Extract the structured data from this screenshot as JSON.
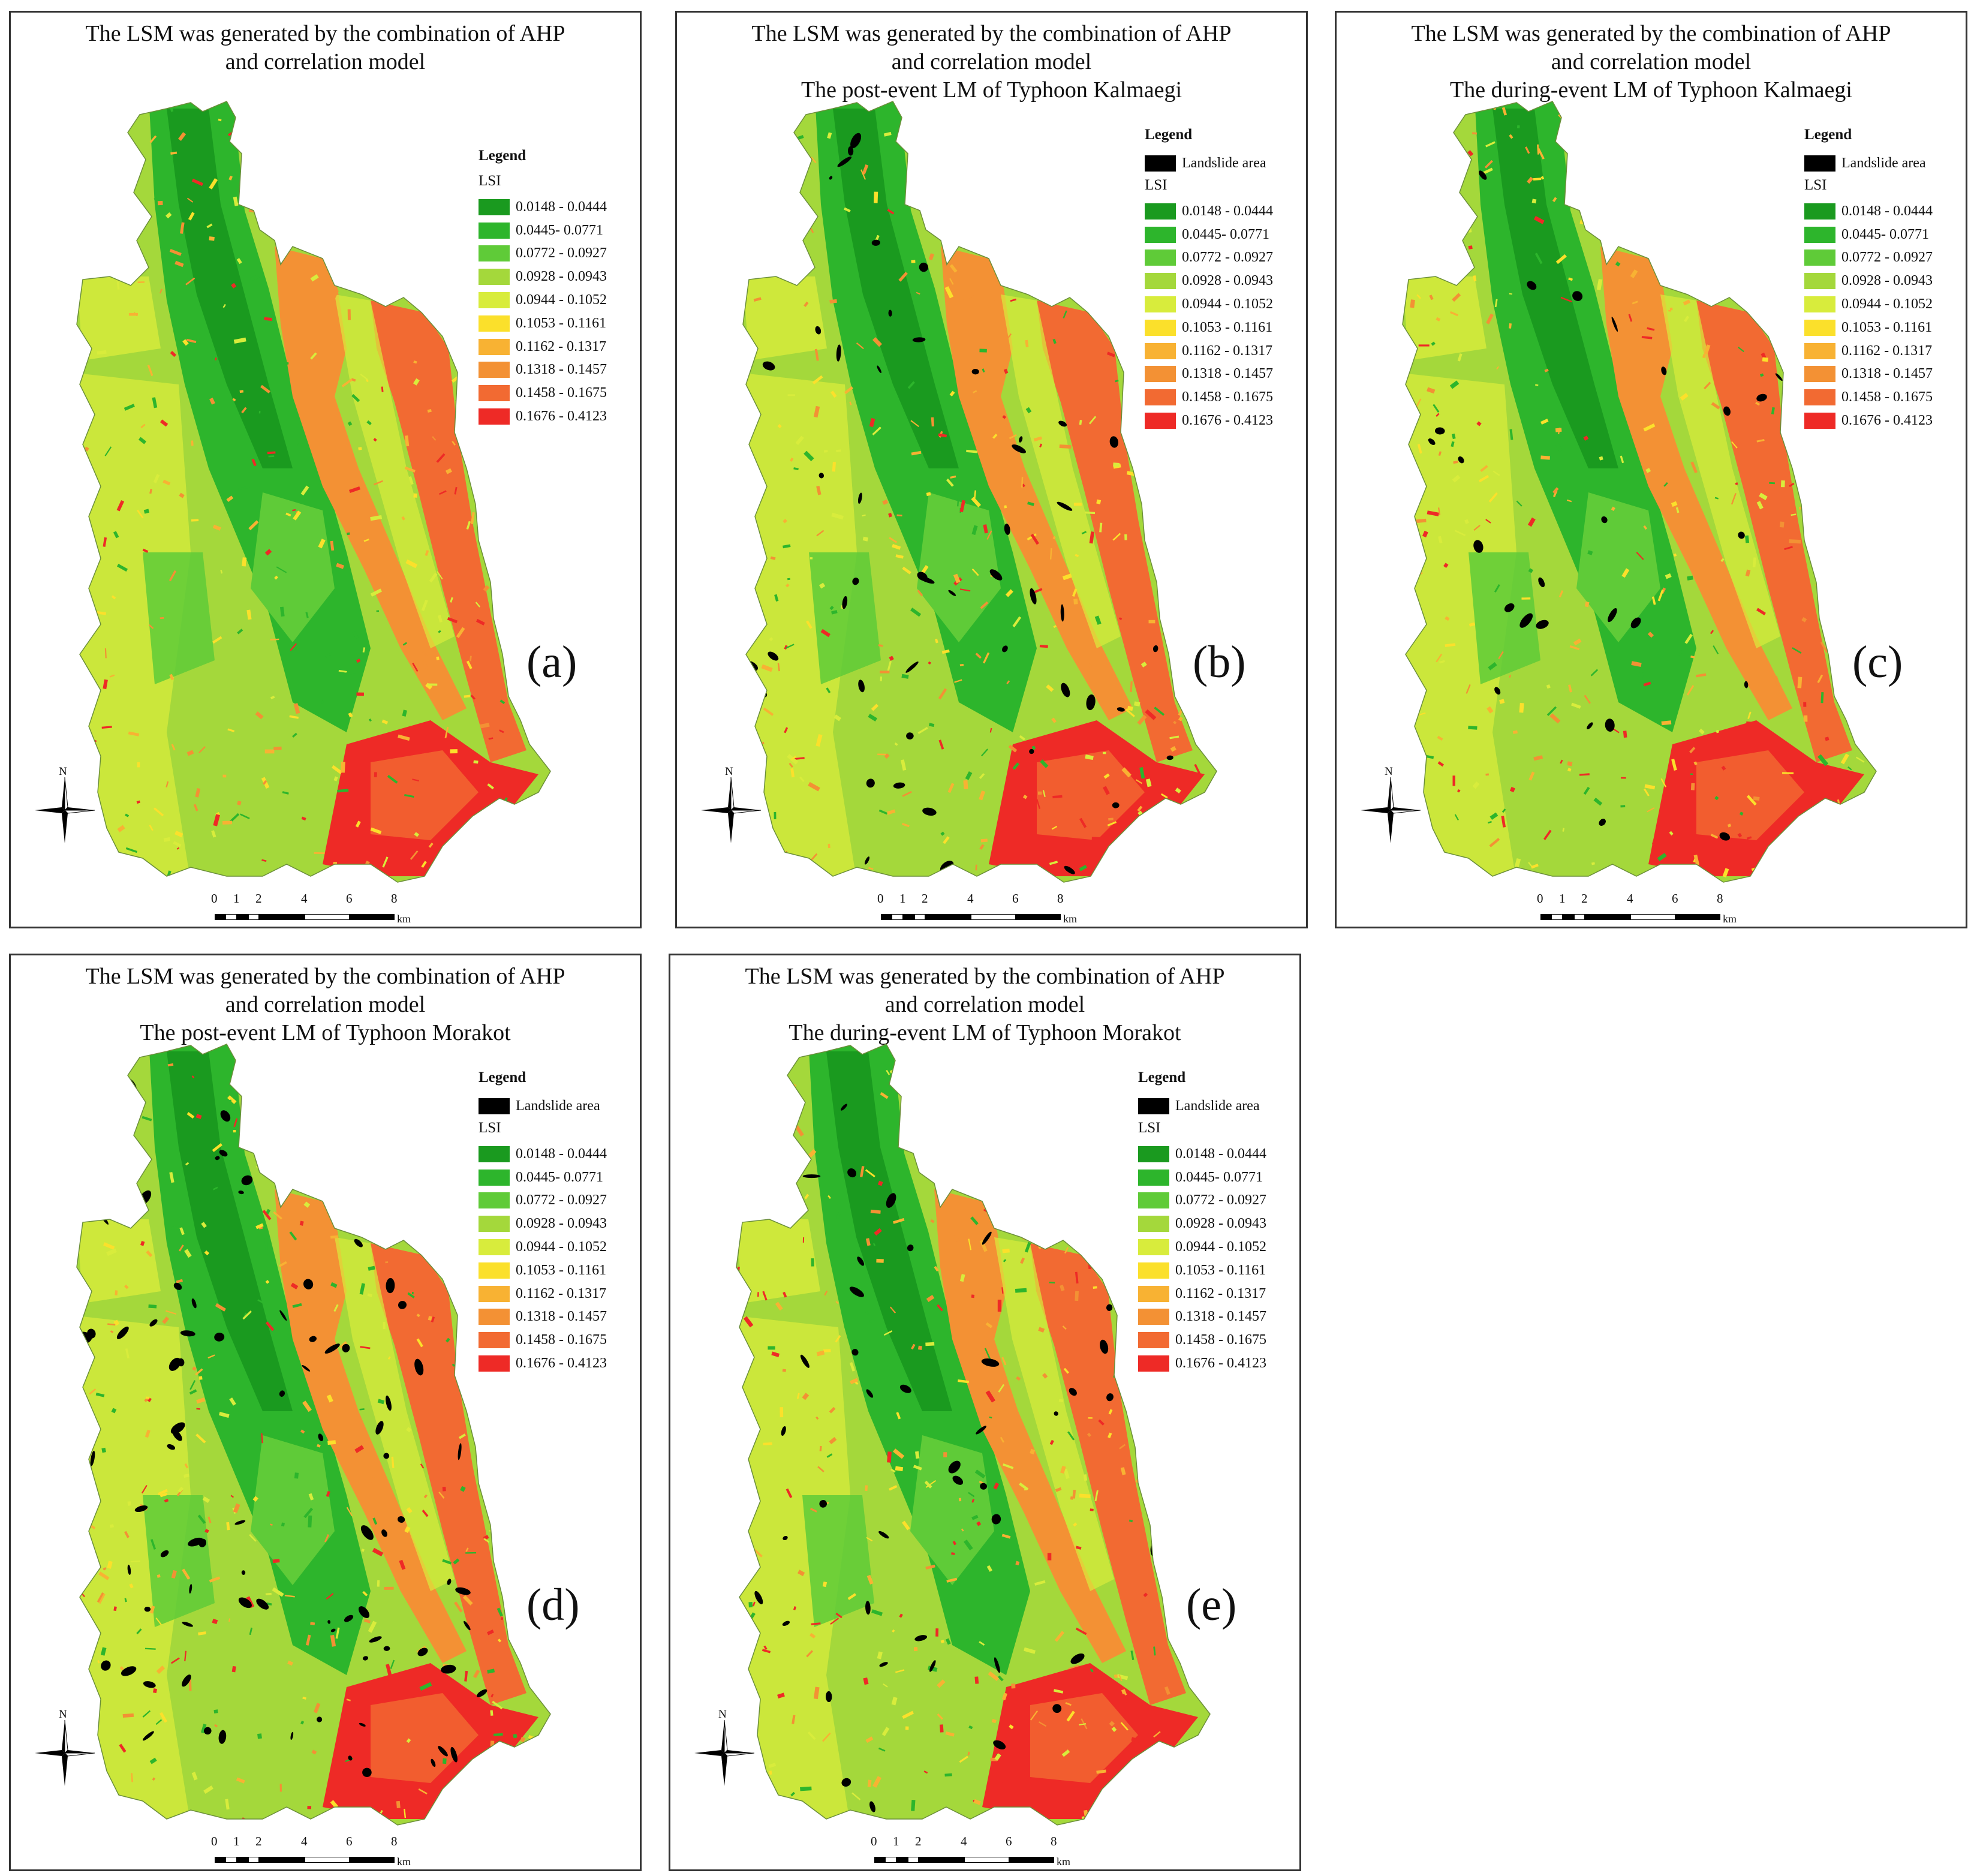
{
  "panels": [
    {
      "id": "a",
      "label": "(a)",
      "titles": [
        "The LSM was generated by the combination of AHP",
        "and correlation model"
      ],
      "show_landslide": false,
      "landslide_level": 0
    },
    {
      "id": "b",
      "label": "(b)",
      "titles": [
        "The LSM was generated by the combination of AHP",
        "and correlation model",
        "The post-event LM of Typhoon Kalmaegi"
      ],
      "show_landslide": true,
      "landslide_level": 1
    },
    {
      "id": "c",
      "label": "(c)",
      "titles": [
        "The LSM was generated by the combination of AHP",
        "and correlation model",
        "The during-event LM of Typhoon Kalmaegi"
      ],
      "show_landslide": true,
      "landslide_level": 0.5
    },
    {
      "id": "d",
      "label": "(d)",
      "titles": [
        "The LSM was generated by the combination of AHP",
        "and correlation model",
        "The post-event LM of Typhoon Morakot"
      ],
      "show_landslide": true,
      "landslide_level": 1.4
    },
    {
      "id": "e",
      "label": "(e)",
      "titles": [
        "The LSM was generated by the combination of AHP",
        "and correlation model",
        "The during-event LM of Typhoon Morakot"
      ],
      "show_landslide": true,
      "landslide_level": 0.8
    }
  ],
  "legend": {
    "title": "Legend",
    "landslide_label": "Landslide area",
    "landslide_color": "#000000",
    "lsi_label": "LSI",
    "classes": [
      {
        "label": "0.0148 - 0.0444",
        "color": "#1a9a1f"
      },
      {
        "label": "0.0445- 0.0771",
        "color": "#2db52c"
      },
      {
        "label": "0.0772 - 0.0927",
        "color": "#5fcb38"
      },
      {
        "label": "0.0928 - 0.0943",
        "color": "#a4d83b"
      },
      {
        "label": "0.0944 - 0.1052",
        "color": "#d8ec3c"
      },
      {
        "label": "0.1053 - 0.1161",
        "color": "#fbe02b"
      },
      {
        "label": "0.1162 - 0.1317",
        "color": "#f8b233"
      },
      {
        "label": "0.1318 - 0.1457",
        "color": "#f39134"
      },
      {
        "label": "0.1458 - 0.1675",
        "color": "#f26a32"
      },
      {
        "label": "0.1676 - 0.4123",
        "color": "#ee2a26"
      }
    ]
  },
  "north_label": "N",
  "scale": {
    "ticks": [
      "0",
      "1",
      "2",
      "4",
      "6",
      "8"
    ],
    "unit": "km"
  }
}
